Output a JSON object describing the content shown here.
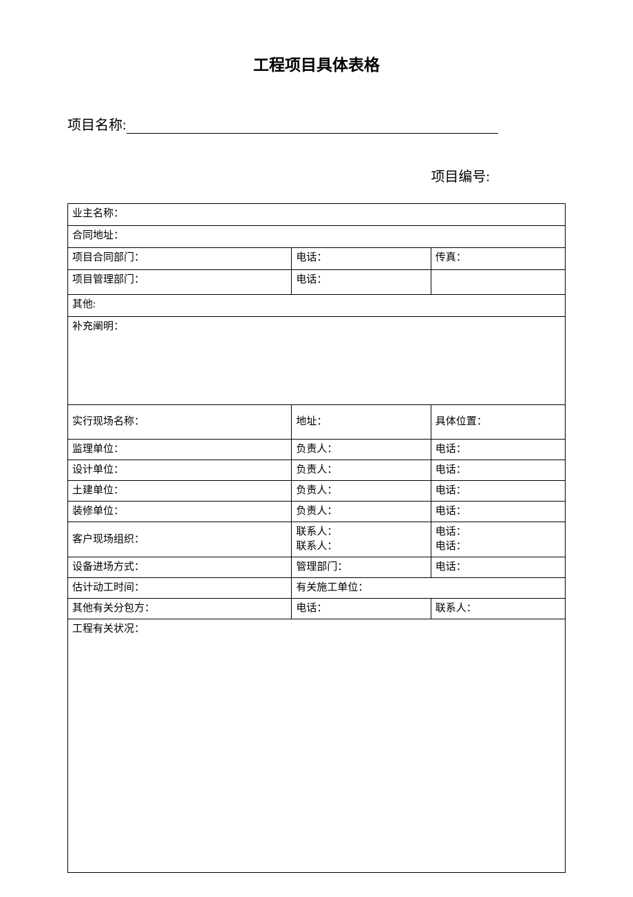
{
  "title": "工程项目具体表格",
  "projectNameLabel": "项目名称:",
  "projectNumberLabel": "项目编号:",
  "rows": {
    "ownerName": "业主名称：",
    "contractAddress": "合同地址：",
    "contractDept": "项目合同部门：",
    "phone": "电话：",
    "fax": "传真：",
    "mgmtDept": "项目管理部门：",
    "other": "其他:",
    "notes": "补充阐明：",
    "siteName": "实行现场名称：",
    "address": "地址：",
    "position": "具体位置：",
    "supervision": "监理单位：",
    "leader": "负责人：",
    "design": "设计单位：",
    "civil": "土建单位：",
    "decoration": "装修单位：",
    "customerOrg": "客户现场组织：",
    "contact": "联系人：",
    "contactDouble": "联系人：\n联系人：",
    "phoneDouble": "电话：\n电话：",
    "equipEntry": "设备进场方式：",
    "mgmtDeptShort": "管理部门：",
    "startTime": "估计动工时间：",
    "relatedUnit": "有关施工单位：",
    "subcontractor": "其他有关分包方：",
    "status": "工程有关状况："
  }
}
